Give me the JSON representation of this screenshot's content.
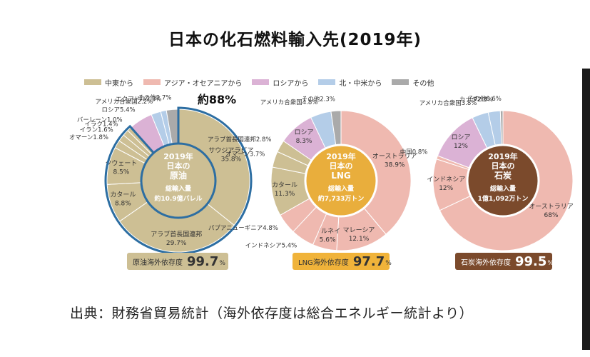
{
  "title": "日本の化石燃料輸入先(2019年)",
  "legend": [
    {
      "label": "中東から",
      "color": "#cdbf94"
    },
    {
      "label": "アジア・オセアニアから",
      "color": "#efb9b0"
    },
    {
      "label": "ロシアから",
      "color": "#dbb2d5"
    },
    {
      "label": "北・中米から",
      "color": "#b4cde8"
    },
    {
      "label": "その他",
      "color": "#aaaaaa"
    }
  ],
  "source": "出典：財務省貿易統計（海外依存度は総合エネルギー統計より）",
  "chart_data": [
    {
      "type": "pie",
      "center_lines": [
        "2019年",
        "日本の",
        "原油",
        "総輸入量",
        "約10.9億バレル"
      ],
      "highlight_label": "約88%",
      "dependency": {
        "label": "原油海外依存度",
        "value": "99.7",
        "unit": "%"
      },
      "slices": [
        {
          "label": "サウジアラビア",
          "value": 35.8,
          "text": "35.8%",
          "group": "中東から"
        },
        {
          "label": "アラブ首長国連邦",
          "value": 29.7,
          "text": "29.7%",
          "group": "中東から"
        },
        {
          "label": "カタール",
          "value": 8.8,
          "text": "8.8%",
          "group": "中東から"
        },
        {
          "label": "クウェート",
          "value": 8.5,
          "text": "8.5%",
          "group": "中東から"
        },
        {
          "label": "オマーン",
          "value": 1.8,
          "text": "1.8%",
          "group": "中東から"
        },
        {
          "label": "イラン",
          "value": 1.6,
          "text": "1.6%",
          "group": "中東から"
        },
        {
          "label": "イラク",
          "value": 1.4,
          "text": "1.4%",
          "group": "中東から"
        },
        {
          "label": "バーレーン",
          "value": 1.0,
          "text": "1.0%",
          "group": "中東から"
        },
        {
          "label": "ロシア",
          "value": 5.4,
          "text": "5.4%",
          "group": "ロシアから"
        },
        {
          "label": "アメリカ合衆国",
          "value": 2.2,
          "text": "2.2%",
          "group": "北・中米から"
        },
        {
          "label": "エクアドル",
          "value": 1.3,
          "text": "1.3%",
          "group": "北・中米から"
        },
        {
          "label": "その他",
          "value": 2.7,
          "text": "2.7%",
          "group": "その他"
        }
      ]
    },
    {
      "type": "pie",
      "center_lines": [
        "2019年",
        "日本の",
        "LNG",
        "総輸入量",
        "約7,733万トン"
      ],
      "dependency": {
        "label": "LNG海外依存度",
        "value": "97.7",
        "unit": "%"
      },
      "slices": [
        {
          "label": "オーストラリア",
          "value": 38.9,
          "text": "38.9%",
          "group": "アジア・オセアニアから"
        },
        {
          "label": "マレーシア",
          "value": 12.1,
          "text": "12.1%",
          "group": "アジア・オセアニアから"
        },
        {
          "label": "ブルネイ",
          "value": 5.6,
          "text": "5.6%",
          "group": "アジア・オセアニアから"
        },
        {
          "label": "インドネシア",
          "value": 5.4,
          "text": "5.4%",
          "group": "アジア・オセアニアから"
        },
        {
          "label": "パプアニューギニア",
          "value": 4.8,
          "text": "4.8%",
          "group": "アジア・オセアニアから"
        },
        {
          "label": "カタール",
          "value": 11.3,
          "text": "11.3%",
          "group": "中東から"
        },
        {
          "label": "オマーン",
          "value": 3.7,
          "text": "3.7%",
          "group": "中東から"
        },
        {
          "label": "アラブ首長国連邦",
          "value": 2.8,
          "text": "2.8%",
          "group": "中東から"
        },
        {
          "label": "ロシア",
          "value": 8.3,
          "text": "8.3%",
          "group": "ロシアから"
        },
        {
          "label": "アメリカ合衆国",
          "value": 4.8,
          "text": "4.8%",
          "group": "北・中米から"
        },
        {
          "label": "その他",
          "value": 2.3,
          "text": "2.3%",
          "group": "その他"
        }
      ]
    },
    {
      "type": "pie",
      "center_lines": [
        "2019年",
        "日本の",
        "石炭",
        "総輸入量",
        "1億1,092万トン"
      ],
      "dependency": {
        "label": "石炭海外依存度",
        "value": "99.5",
        "unit": "%"
      },
      "slices": [
        {
          "label": "オーストラリア",
          "value": 68,
          "text": "68%",
          "group": "アジア・オセアニアから"
        },
        {
          "label": "インドネシア",
          "value": 12,
          "text": "12%",
          "group": "アジア・オセアニアから"
        },
        {
          "label": "中国",
          "value": 0.8,
          "text": "0.8%",
          "group": "アジア・オセアニアから"
        },
        {
          "label": "ロシア",
          "value": 12,
          "text": "12%",
          "group": "ロシアから"
        },
        {
          "label": "アメリカ合衆国",
          "value": 3.8,
          "text": "3.8%",
          "group": "北・中米から"
        },
        {
          "label": "カナダ",
          "value": 2.8,
          "text": "2.8%",
          "group": "北・中米から"
        },
        {
          "label": "その他",
          "value": 0.6,
          "text": "0.6%",
          "group": "その他"
        }
      ]
    }
  ]
}
